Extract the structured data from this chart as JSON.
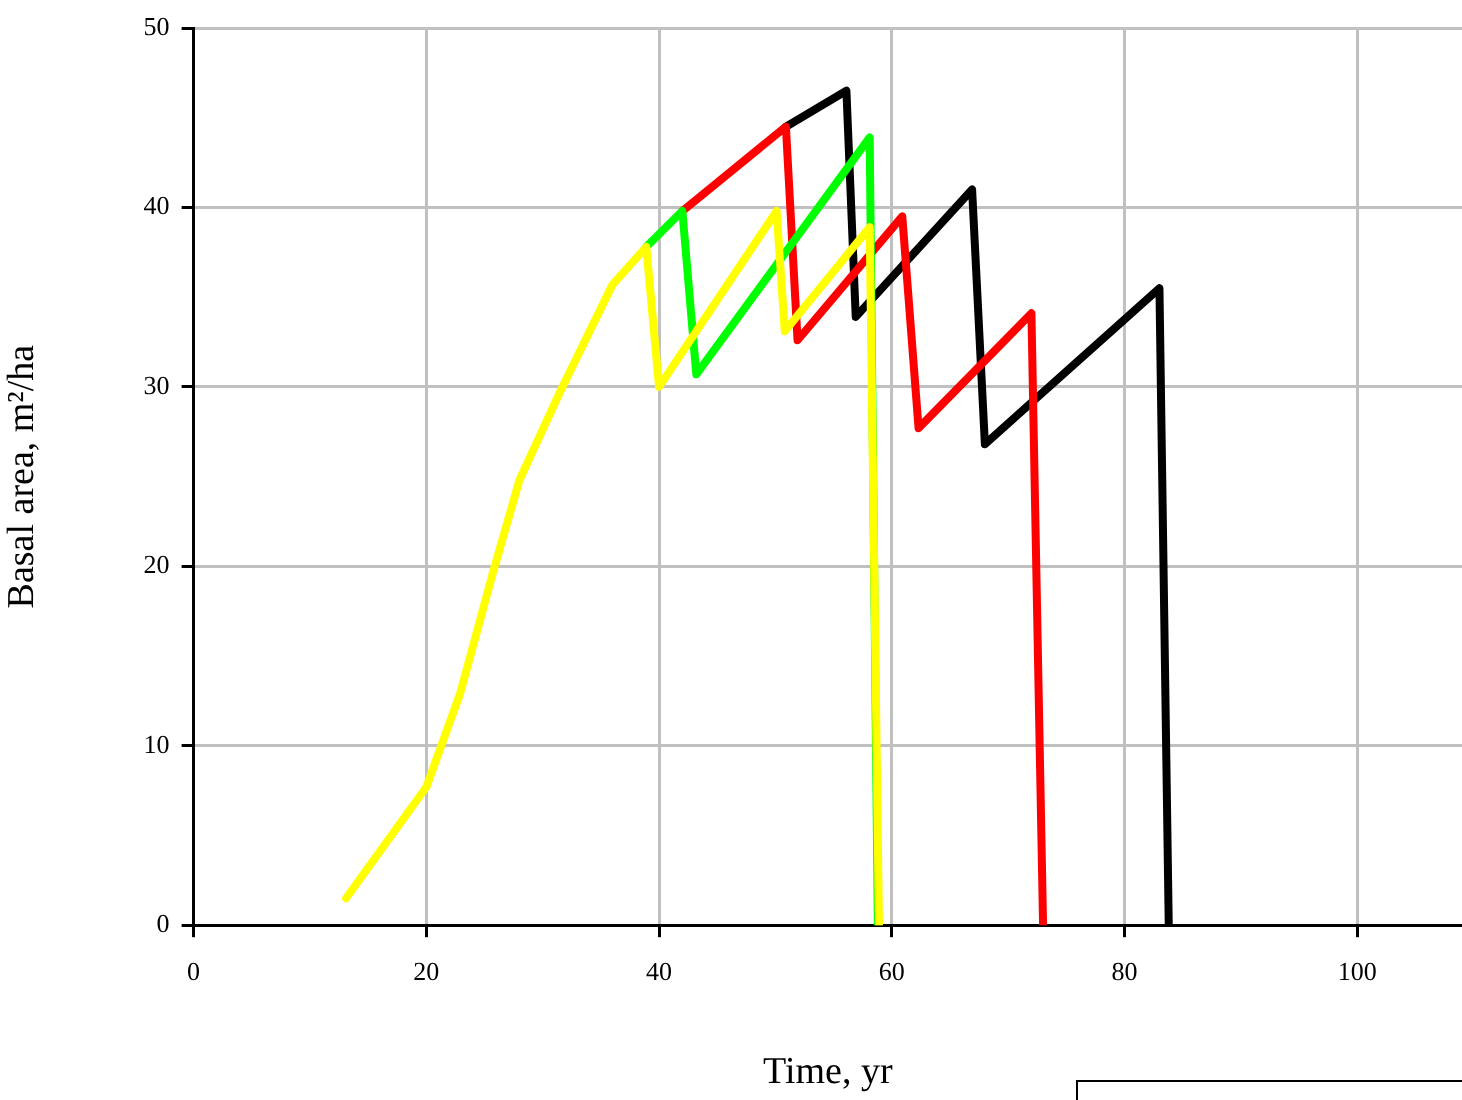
{
  "chart_data": {
    "type": "line",
    "xlabel": "Time, yr",
    "ylabel": "Basal area, m²/ha",
    "xlim": [
      0,
      109
    ],
    "xticks": [
      0,
      20,
      40,
      60,
      80,
      100
    ],
    "ylim": [
      0,
      50
    ],
    "yticks": [
      0,
      10,
      20,
      30,
      40,
      50
    ],
    "grid": true,
    "legend": false,
    "marker": "none",
    "line_style": "solid",
    "series": [
      {
        "color": "#000000",
        "x": [
          50.9,
          56.1,
          56.9,
          66.9,
          68.0,
          83.0,
          83.8
        ],
        "values": [
          44.5,
          46.5,
          33.9,
          41.0,
          26.8,
          35.5,
          0
        ]
      },
      {
        "color": "#ff0000",
        "x": [
          42.0,
          50.9,
          51.9,
          60.9,
          62.3,
          72.0,
          73.0
        ],
        "values": [
          39.8,
          44.5,
          32.6,
          39.5,
          27.7,
          34.1,
          0
        ]
      },
      {
        "color": "#00ff00",
        "x": [
          38.9,
          42.0,
          43.2,
          58.1,
          58.8
        ],
        "values": [
          37.8,
          39.8,
          30.7,
          43.9,
          0
        ]
      },
      {
        "color": "#ffff00",
        "x": [
          13.1,
          20.0,
          22.9,
          25.7,
          28.0,
          31.4,
          36.0,
          38.9,
          40.0,
          50.1,
          50.8,
          58.1,
          58.9
        ],
        "values": [
          1.5,
          7.7,
          12.9,
          19.6,
          24.8,
          29.6,
          35.7,
          37.8,
          30.0,
          39.8,
          33.1,
          38.9,
          0
        ]
      }
    ]
  }
}
